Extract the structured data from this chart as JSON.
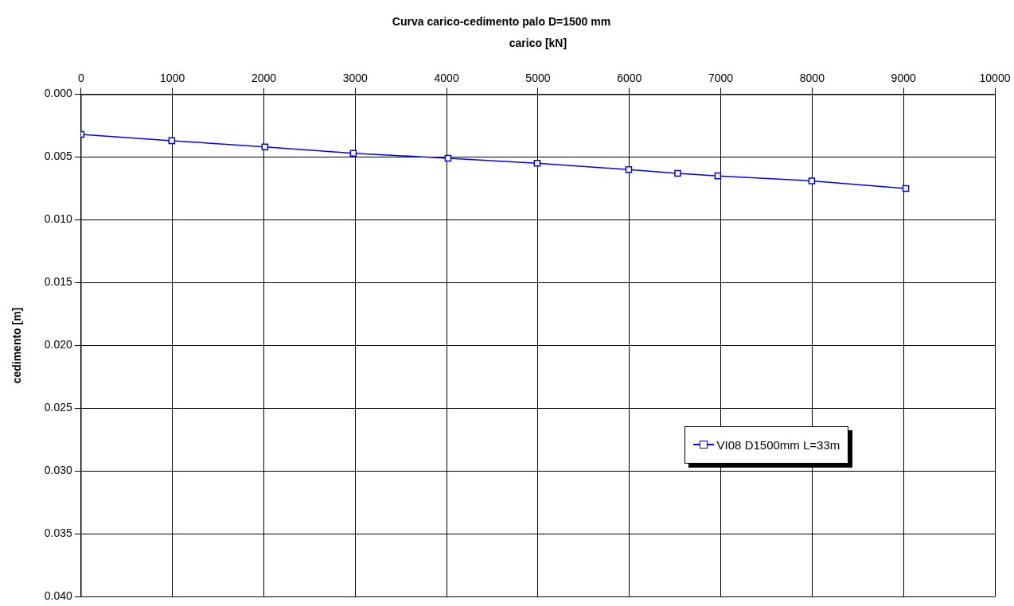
{
  "chart_data": {
    "type": "line",
    "title": "Curva carico-cedimento palo D=1500 mm",
    "xlabel": "carico [kN]",
    "ylabel": "cedimento [m]",
    "x": [
      0,
      993,
      2012,
      2979,
      4016,
      4991,
      5993,
      6529,
      6968,
      7996,
      9025
    ],
    "series": [
      {
        "name": "VI08 D1500mm L=33m",
        "color": "#0000ff",
        "values": [
          0.0032,
          0.0037,
          0.0042,
          0.0047,
          0.0051,
          0.0055,
          0.006,
          0.0063,
          0.0065,
          0.0069,
          0.0075
        ]
      }
    ],
    "xlim": [
      0,
      10000
    ],
    "xticks": [
      0,
      1000,
      2000,
      3000,
      4000,
      5000,
      6000,
      7000,
      8000,
      9000,
      10000
    ],
    "ylim": [
      0.04,
      0
    ],
    "yticks": [
      {
        "value": 0,
        "label": "0.000"
      },
      {
        "value": 0.005,
        "label": "0.005"
      },
      {
        "value": 0.01,
        "label": "0.010"
      },
      {
        "value": 0.015,
        "label": "0.015"
      },
      {
        "value": 0.02,
        "label": "0.020"
      },
      {
        "value": 0.025,
        "label": "0.025"
      },
      {
        "value": 0.03,
        "label": "0.030"
      },
      {
        "value": 0.035,
        "label": "0.035"
      },
      {
        "value": 0.04,
        "label": "0.040"
      }
    ],
    "grid": true,
    "legend": "bottom right",
    "marker": "square",
    "line_style": "solid"
  }
}
